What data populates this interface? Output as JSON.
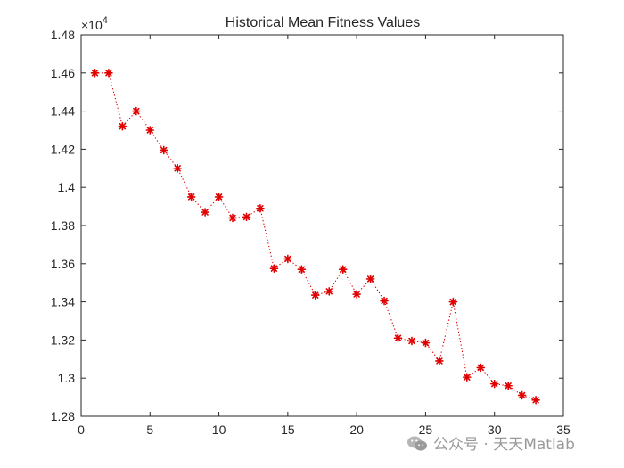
{
  "chart_data": {
    "type": "line",
    "title": "Historical Mean Fitness Values",
    "xlabel": "",
    "ylabel": "",
    "xlim": [
      0,
      35
    ],
    "ylim": [
      12800,
      14800
    ],
    "x_ticks": [
      0,
      5,
      10,
      15,
      20,
      25,
      30,
      35
    ],
    "y_ticks": [
      12800,
      13000,
      13200,
      13400,
      13600,
      13800,
      14000,
      14200,
      14400,
      14600,
      14800
    ],
    "y_tick_labels": [
      "1.28",
      "1.3",
      "1.32",
      "1.34",
      "1.36",
      "1.38",
      "1.4",
      "1.42",
      "1.44",
      "1.46",
      "1.48"
    ],
    "y_exponent_label": "×10",
    "y_exponent_power": "4",
    "grid": false,
    "line_style": "dotted",
    "marker": "asterisk",
    "color": "#e00000",
    "series": [
      {
        "x": [
          1,
          2,
          3,
          4,
          5,
          6,
          7,
          8,
          9,
          10,
          11,
          12,
          13,
          14,
          15,
          16,
          17,
          18,
          19,
          20,
          21,
          22,
          23,
          24,
          25,
          26,
          27,
          28,
          29,
          30,
          31,
          32,
          33
        ],
        "values": [
          14600,
          14600,
          14320,
          14400,
          14300,
          14195,
          14100,
          13950,
          13870,
          13950,
          13840,
          13845,
          13890,
          13575,
          13625,
          13570,
          13435,
          13455,
          13570,
          13440,
          13520,
          13405,
          13210,
          13195,
          13185,
          13090,
          13400,
          13005,
          13055,
          12970,
          12960,
          12910,
          12885
        ]
      }
    ]
  },
  "watermark": {
    "text": "公众号 · 天天Matlab"
  }
}
